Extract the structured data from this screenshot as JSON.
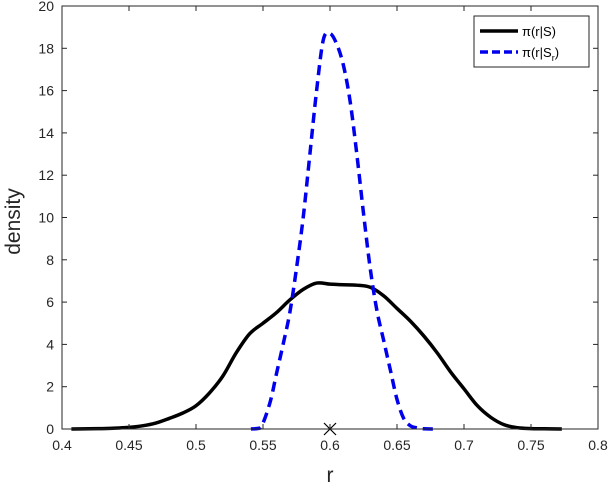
{
  "chart_data": {
    "type": "line",
    "title": "",
    "xlabel": "r",
    "ylabel": "density",
    "xlim": [
      0.4,
      0.8
    ],
    "ylim": [
      0,
      20
    ],
    "xticks": [
      "0.4",
      "0.45",
      "0.5",
      "0.55",
      "0.6",
      "0.65",
      "0.7",
      "0.75",
      "0.8"
    ],
    "yticks": [
      "0",
      "2",
      "4",
      "6",
      "8",
      "10",
      "12",
      "14",
      "16",
      "18",
      "20"
    ],
    "grid": false,
    "legend_position": "top-right",
    "legend": [
      {
        "main": "π(r|S)",
        "sub": "",
        "tail": ""
      },
      {
        "main": "π(r|S",
        "sub": "r",
        "tail": ")"
      }
    ],
    "series": [
      {
        "color": "#000000",
        "style": "solid",
        "x": [
          0.407,
          0.42,
          0.43,
          0.44,
          0.45,
          0.46,
          0.47,
          0.48,
          0.49,
          0.5,
          0.51,
          0.52,
          0.53,
          0.54,
          0.55,
          0.56,
          0.57,
          0.58,
          0.59,
          0.6,
          0.61,
          0.62,
          0.63,
          0.64,
          0.65,
          0.66,
          0.67,
          0.68,
          0.69,
          0.7,
          0.71,
          0.72,
          0.73,
          0.74,
          0.75,
          0.76,
          0.773
        ],
        "values": [
          0,
          0.01,
          0.02,
          0.04,
          0.08,
          0.15,
          0.28,
          0.5,
          0.75,
          1.1,
          1.7,
          2.5,
          3.6,
          4.5,
          5.0,
          5.5,
          6.1,
          6.6,
          6.9,
          6.85,
          6.82,
          6.8,
          6.7,
          6.3,
          5.7,
          5.1,
          4.4,
          3.6,
          2.7,
          1.9,
          1.1,
          0.55,
          0.2,
          0.06,
          0.02,
          0.01,
          0
        ]
      },
      {
        "color": "#0000ee",
        "style": "dashed",
        "x": [
          0.541,
          0.548,
          0.555,
          0.56,
          0.565,
          0.57,
          0.575,
          0.58,
          0.585,
          0.59,
          0.595,
          0.6,
          0.605,
          0.61,
          0.615,
          0.62,
          0.625,
          0.63,
          0.635,
          0.64,
          0.645,
          0.65,
          0.655,
          0.66,
          0.665,
          0.67,
          0.678
        ],
        "values": [
          0,
          0.05,
          1.2,
          2.6,
          4.0,
          5.5,
          7.6,
          10.0,
          13.0,
          16.0,
          18.4,
          18.7,
          18.2,
          17.2,
          15.5,
          13.0,
          10.2,
          7.6,
          5.6,
          4.2,
          2.8,
          1.4,
          0.5,
          0.15,
          0.05,
          0.01,
          0
        ]
      }
    ],
    "markers": [
      {
        "x": 0.6,
        "y": 0,
        "symbol": "x",
        "color": "#000000"
      }
    ]
  }
}
